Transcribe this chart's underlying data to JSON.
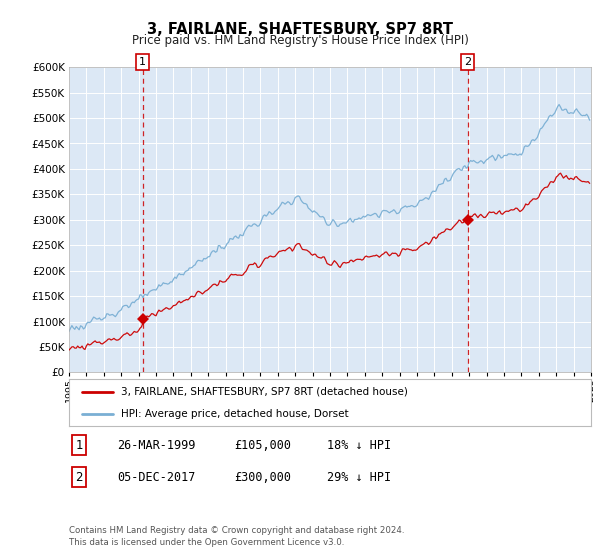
{
  "title": "3, FAIRLANE, SHAFTESBURY, SP7 8RT",
  "subtitle": "Price paid vs. HM Land Registry's House Price Index (HPI)",
  "bg_color": "#dce8f5",
  "red_line_label": "3, FAIRLANE, SHAFTESBURY, SP7 8RT (detached house)",
  "blue_line_label": "HPI: Average price, detached house, Dorset",
  "annotation1_date": "26-MAR-1999",
  "annotation1_price": "£105,000",
  "annotation1_hpi": "18% ↓ HPI",
  "annotation1_year": 1999.23,
  "annotation1_value": 105000,
  "annotation2_date": "05-DEC-2017",
  "annotation2_price": "£300,000",
  "annotation2_hpi": "29% ↓ HPI",
  "annotation2_year": 2017.92,
  "annotation2_value": 300000,
  "ylim_max": 600000,
  "xmin": 1995,
  "xmax": 2025,
  "footer_line1": "Contains HM Land Registry data © Crown copyright and database right 2024.",
  "footer_line2": "This data is licensed under the Open Government Licence v3.0.",
  "red_color": "#cc0000",
  "blue_color": "#7aafd4",
  "dashed_color": "#cc0000",
  "grid_color": "#c8d8e8",
  "yticks": [
    0,
    50000,
    100000,
    150000,
    200000,
    250000,
    300000,
    350000,
    400000,
    450000,
    500000,
    550000,
    600000
  ]
}
